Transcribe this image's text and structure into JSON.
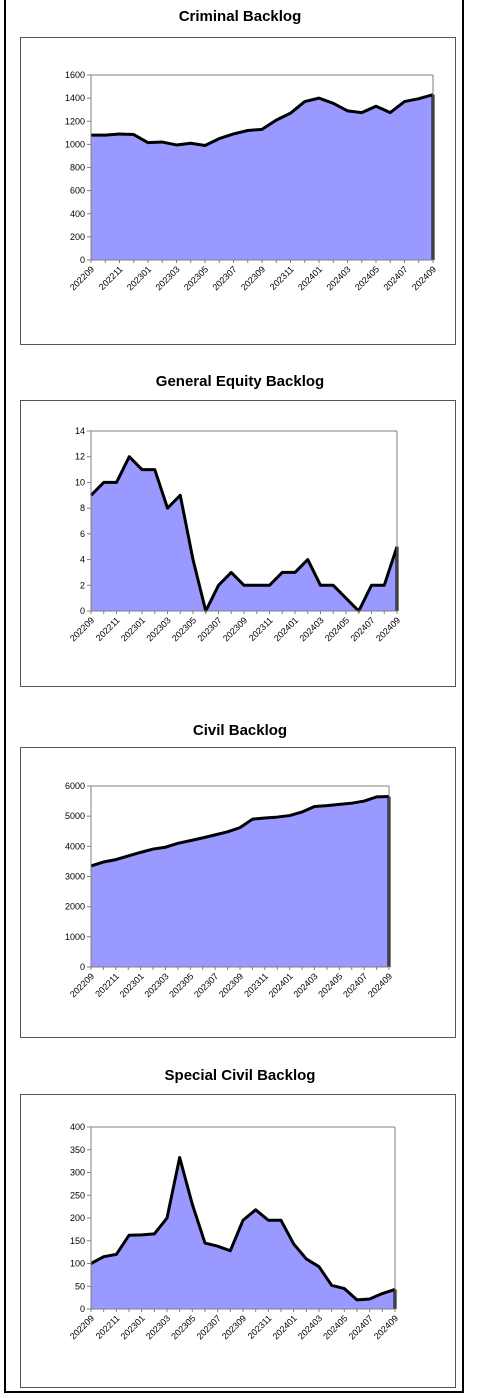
{
  "colors": {
    "area_fill": "#9999ff",
    "line": "#000000"
  },
  "chart_data": [
    {
      "type": "area",
      "title": "Criminal Backlog",
      "x": [
        "202209",
        "202210",
        "202211",
        "202212",
        "202301",
        "202302",
        "202303",
        "202304",
        "202305",
        "202306",
        "202307",
        "202308",
        "202309",
        "202310",
        "202311",
        "202312",
        "202401",
        "202402",
        "202403",
        "202404",
        "202405",
        "202406",
        "202407",
        "202408",
        "202409"
      ],
      "x_tick_labels": [
        "202209",
        "202211",
        "202301",
        "202303",
        "202305",
        "202307",
        "202309",
        "202311",
        "202401",
        "202403",
        "202405",
        "202407",
        "202409"
      ],
      "values": [
        1080,
        1080,
        1090,
        1085,
        1015,
        1020,
        995,
        1010,
        990,
        1050,
        1090,
        1120,
        1130,
        1210,
        1270,
        1370,
        1400,
        1355,
        1290,
        1275,
        1330,
        1275,
        1370,
        1395,
        1430
      ],
      "ylim": [
        0,
        1600
      ],
      "y_ticks": [
        0,
        200,
        400,
        600,
        800,
        1000,
        1200,
        1400,
        1600
      ],
      "grid": false
    },
    {
      "type": "area",
      "title": "General Equity Backlog",
      "x": [
        "202209",
        "202210",
        "202211",
        "202212",
        "202301",
        "202302",
        "202303",
        "202304",
        "202305",
        "202306",
        "202307",
        "202308",
        "202309",
        "202310",
        "202311",
        "202312",
        "202401",
        "202402",
        "202403",
        "202404",
        "202405",
        "202406",
        "202407",
        "202408",
        "202409"
      ],
      "x_tick_labels": [
        "202209",
        "202211",
        "202301",
        "202303",
        "202305",
        "202307",
        "202309",
        "202311",
        "202401",
        "202403",
        "202405",
        "202407",
        "202409"
      ],
      "values": [
        9,
        10,
        10,
        12,
        11,
        11,
        8,
        9,
        4,
        0,
        2,
        3,
        2,
        2,
        2,
        3,
        3,
        4,
        2,
        2,
        1,
        0,
        2,
        2,
        5
      ],
      "ylim": [
        0,
        14
      ],
      "y_ticks": [
        0,
        2,
        4,
        6,
        8,
        10,
        12,
        14
      ],
      "grid": false
    },
    {
      "type": "area",
      "title": "Civil Backlog",
      "x": [
        "202209",
        "202210",
        "202211",
        "202212",
        "202301",
        "202302",
        "202303",
        "202304",
        "202305",
        "202306",
        "202307",
        "202308",
        "202309",
        "202310",
        "202311",
        "202312",
        "202401",
        "202402",
        "202403",
        "202404",
        "202405",
        "202406",
        "202407",
        "202408",
        "202409"
      ],
      "x_tick_labels": [
        "202209",
        "202211",
        "202301",
        "202303",
        "202305",
        "202307",
        "202309",
        "202311",
        "202401",
        "202403",
        "202405",
        "202407",
        "202409"
      ],
      "values": [
        3350,
        3480,
        3560,
        3680,
        3800,
        3910,
        3970,
        4100,
        4190,
        4280,
        4380,
        4480,
        4620,
        4900,
        4940,
        4970,
        5020,
        5140,
        5320,
        5350,
        5390,
        5430,
        5500,
        5640,
        5650
      ],
      "ylim": [
        0,
        6000
      ],
      "y_ticks": [
        0,
        1000,
        2000,
        3000,
        4000,
        5000,
        6000
      ],
      "grid": false
    },
    {
      "type": "area",
      "title": "Special Civil Backlog",
      "x": [
        "202209",
        "202210",
        "202211",
        "202212",
        "202301",
        "202302",
        "202303",
        "202304",
        "202305",
        "202306",
        "202307",
        "202308",
        "202309",
        "202310",
        "202311",
        "202312",
        "202401",
        "202402",
        "202403",
        "202404",
        "202405",
        "202406",
        "202407",
        "202408",
        "202409"
      ],
      "x_tick_labels": [
        "202209",
        "202211",
        "202301",
        "202303",
        "202305",
        "202307",
        "202309",
        "202311",
        "202401",
        "202403",
        "202405",
        "202407",
        "202409"
      ],
      "values": [
        100,
        115,
        120,
        162,
        163,
        165,
        200,
        333,
        230,
        145,
        138,
        128,
        195,
        218,
        195,
        195,
        143,
        110,
        93,
        52,
        45,
        20,
        22,
        34,
        43
      ],
      "ylim": [
        0,
        400
      ],
      "y_ticks": [
        0,
        50,
        100,
        150,
        200,
        250,
        300,
        350,
        400
      ],
      "grid": false
    }
  ]
}
